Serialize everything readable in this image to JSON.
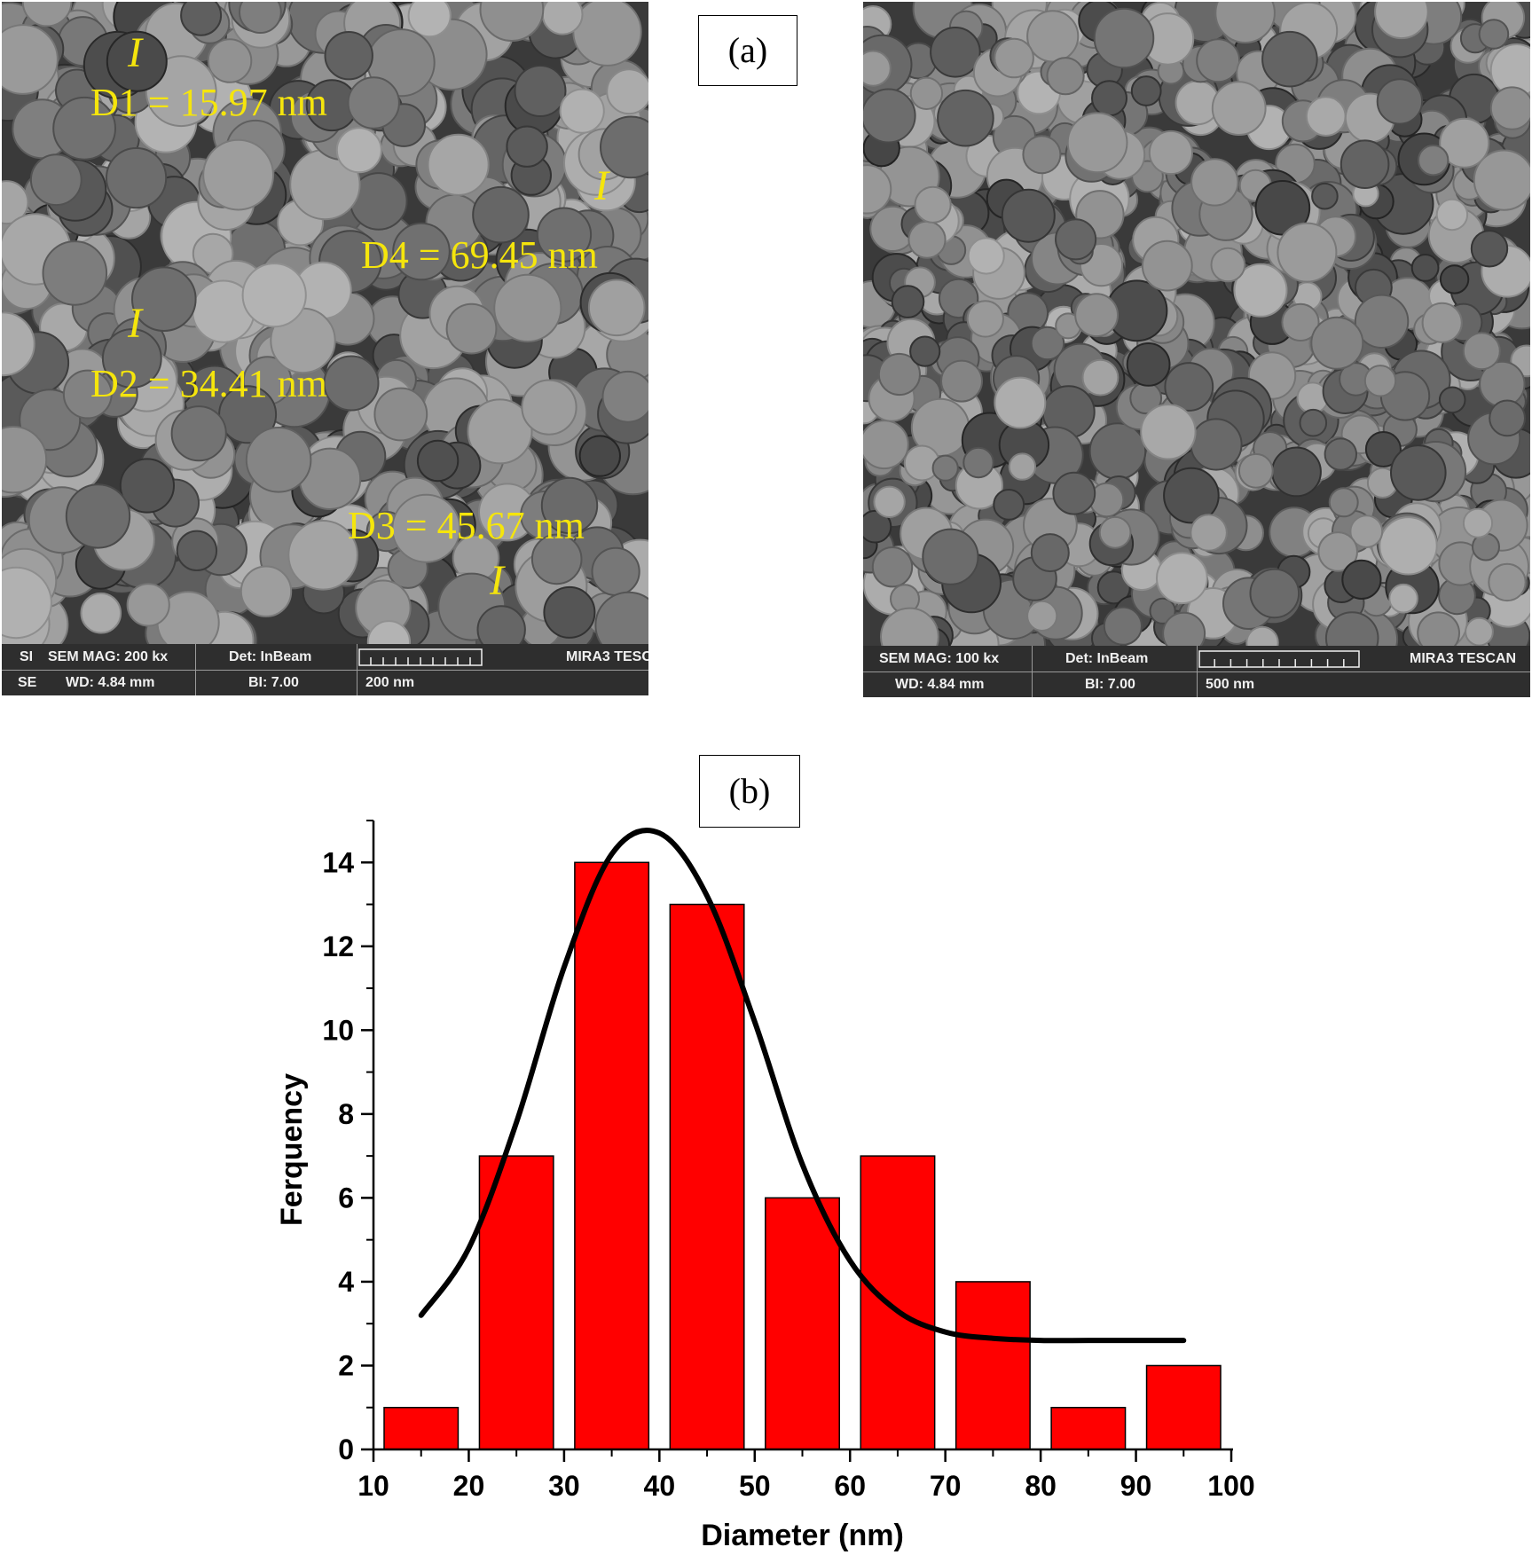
{
  "panel_a": {
    "label": "(a)",
    "left_image": {
      "measurements": [
        {
          "name": "D1",
          "text": "D1 = 15.97 nm"
        },
        {
          "name": "D2",
          "text": "D2 = 34.41 nm"
        },
        {
          "name": "D3",
          "text": "D3 = 45.67 nm"
        },
        {
          "name": "D4",
          "text": "D4 = 69.45 nm"
        }
      ],
      "info_bar": {
        "row1_prefix": "SI",
        "row2_prefix": "SE",
        "mag": "SEM MAG: 200 kx",
        "det": "Det: InBeam",
        "wd": "WD: 4.84 mm",
        "bi": "BI: 7.00",
        "scale": "200 nm",
        "brand": "MIRA3 TESC"
      }
    },
    "right_image": {
      "info_bar": {
        "mag": "SEM MAG: 100 kx",
        "det": "Det: InBeam",
        "wd": "WD: 4.84 mm",
        "bi": "BI: 7.00",
        "scale": "500 nm",
        "brand": "MIRA3 TESCAN"
      }
    }
  },
  "panel_b": {
    "label": "(b)"
  },
  "chart_data": {
    "type": "bar",
    "xlabel": "Diameter (nm)",
    "ylabel": "Ferquency",
    "xlim": [
      10,
      100
    ],
    "ylim": [
      0,
      15
    ],
    "xticks": [
      10,
      20,
      30,
      40,
      50,
      60,
      70,
      80,
      90,
      100
    ],
    "yticks": [
      0,
      2,
      4,
      6,
      8,
      10,
      12,
      14
    ],
    "bins": [
      {
        "from": 10,
        "to": 20,
        "value": 1
      },
      {
        "from": 20,
        "to": 30,
        "value": 7
      },
      {
        "from": 30,
        "to": 40,
        "value": 14
      },
      {
        "from": 40,
        "to": 50,
        "value": 13
      },
      {
        "from": 50,
        "to": 60,
        "value": 6
      },
      {
        "from": 60,
        "to": 70,
        "value": 7
      },
      {
        "from": 70,
        "to": 80,
        "value": 4
      },
      {
        "from": 80,
        "to": 90,
        "value": 1
      },
      {
        "from": 90,
        "to": 100,
        "value": 2
      }
    ],
    "bar_color": "#ff0000",
    "fit_curve": {
      "type": "line",
      "color": "#000000",
      "x": [
        15,
        20,
        25,
        30,
        35,
        40,
        45,
        50,
        55,
        60,
        65,
        70,
        75,
        80,
        85,
        90,
        95
      ],
      "y": [
        3.2,
        4.8,
        7.8,
        11.5,
        14.2,
        14.7,
        13.2,
        10.2,
        6.8,
        4.5,
        3.3,
        2.8,
        2.65,
        2.6,
        2.6,
        2.6,
        2.6
      ]
    },
    "grid": false
  }
}
